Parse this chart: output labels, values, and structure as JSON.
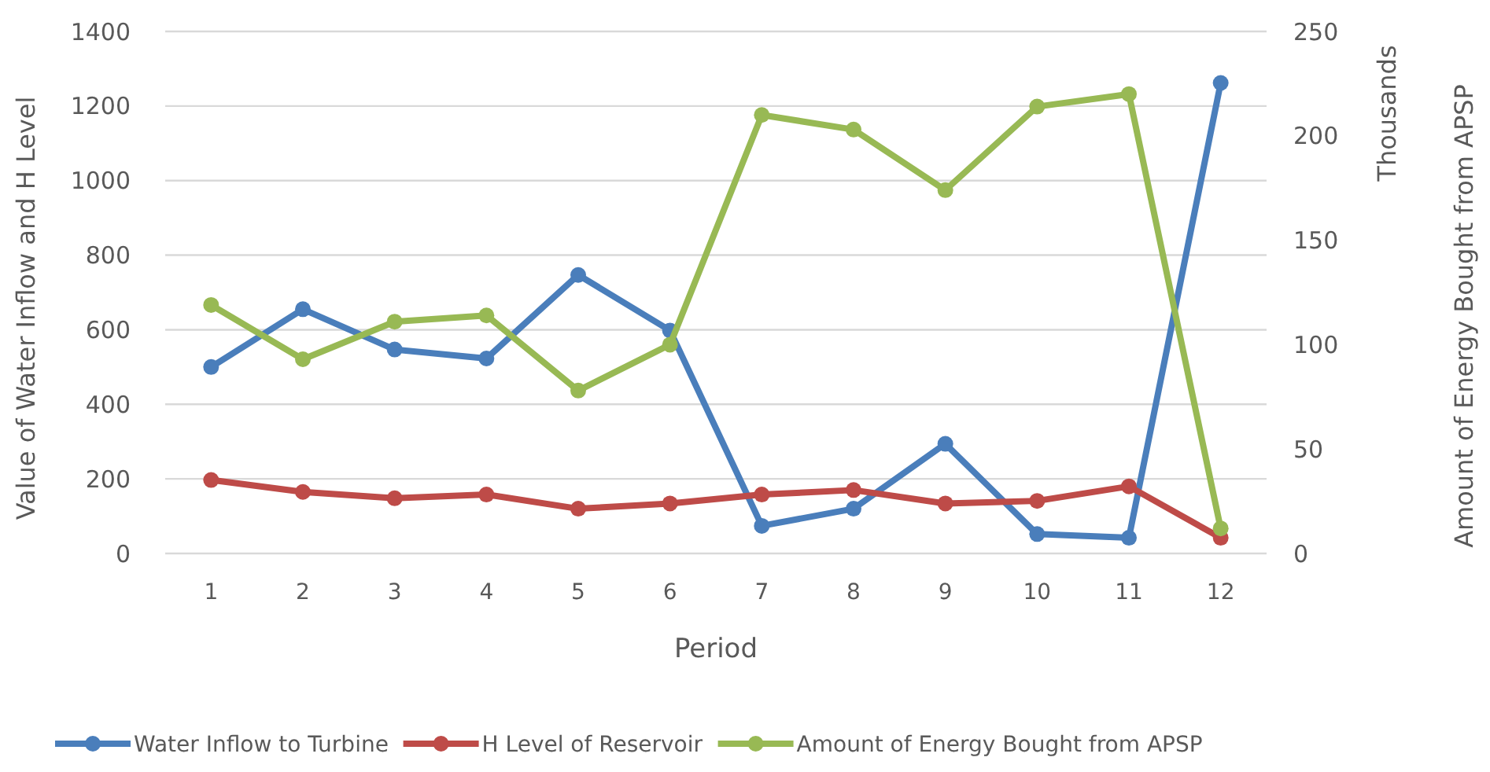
{
  "chart_data": {
    "type": "line",
    "xlabel": "Period",
    "ylabel": "Value of Water Inflow and H Level",
    "y2label": "Amount of Energy Bought from APSP",
    "annotations": [
      "Thousands"
    ],
    "x": [
      1,
      2,
      3,
      4,
      5,
      6,
      7,
      8,
      9,
      10,
      11,
      12
    ],
    "xlim": [
      0.5,
      12.5
    ],
    "xticks": [
      1,
      2,
      3,
      4,
      5,
      6,
      7,
      8,
      9,
      10,
      11,
      12
    ],
    "series": [
      {
        "name": "Water Inflow to Turbine",
        "color": "#4a7ebb",
        "values": [
          500,
          655,
          547,
          523,
          747,
          598,
          74,
          120,
          294,
          52,
          42,
          1262
        ]
      },
      {
        "name": "H Level of Reservoir",
        "color": "#be4b48",
        "values": [
          197,
          165,
          148,
          158,
          120,
          134,
          158,
          170,
          134,
          141,
          180,
          42
        ]
      },
      {
        "name": "Amount of Energy Bought from APSP",
        "color": "#98b954",
        "axis": "y2",
        "values": [
          119,
          93,
          111,
          114,
          78,
          100,
          210,
          203,
          174,
          214,
          220,
          12
        ]
      }
    ],
    "ylim": [
      0,
      1400
    ],
    "yticks": [
      0,
      200,
      400,
      600,
      800,
      1000,
      1200,
      1400
    ],
    "y2lim": [
      0,
      250
    ],
    "y2ticks": [
      0,
      50,
      100,
      150,
      200,
      250
    ],
    "grid": "y",
    "legend": "bottom",
    "marker": "circle",
    "line_style": "solid"
  }
}
